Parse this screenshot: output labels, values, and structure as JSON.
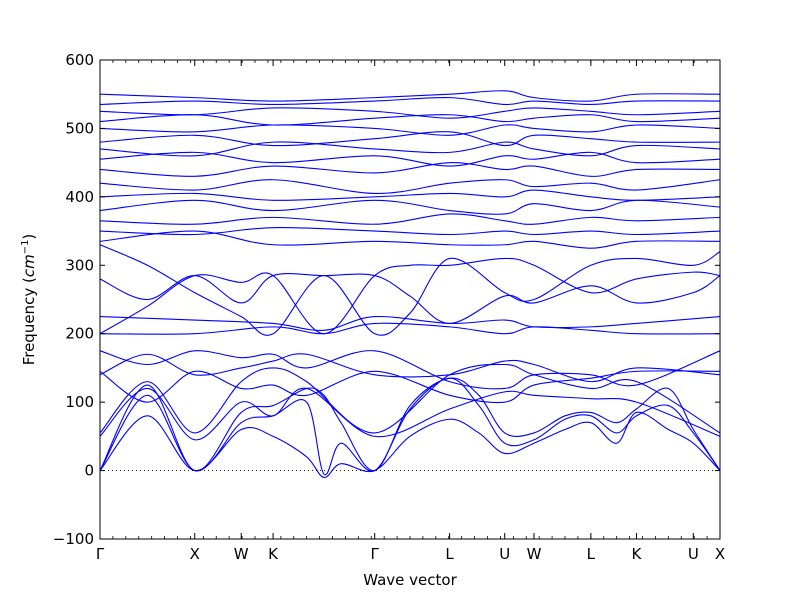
{
  "chart_data": {
    "type": "line",
    "xlabel": "Wave vector",
    "ylabel_prefix": "Frequency (",
    "ylabel_unit_base": "cm",
    "ylabel_unit_exp": "−1",
    "ylabel_suffix": ")",
    "ylim": [
      -100,
      600
    ],
    "yticks": [
      -100,
      0,
      100,
      200,
      300,
      400,
      500,
      600
    ],
    "ytick_labels": [
      "−100",
      "0",
      "100",
      "200",
      "300",
      "400",
      "500",
      "600"
    ],
    "xlim": [
      0,
      7.2
    ],
    "xticks": [
      {
        "label": "Γ",
        "x": 0.0
      },
      {
        "label": "X",
        "x": 1.1
      },
      {
        "label": "W",
        "x": 1.64
      },
      {
        "label": "K",
        "x": 2.01
      },
      {
        "label": "Γ",
        "x": 3.19
      },
      {
        "label": "L",
        "x": 4.06
      },
      {
        "label": "U",
        "x": 4.7
      },
      {
        "label": "W",
        "x": 5.04
      },
      {
        "label": "L",
        "x": 5.7
      },
      {
        "label": "K",
        "x": 6.23
      },
      {
        "label": "U",
        "x": 6.89
      },
      {
        "label": "X",
        "x": 7.2
      }
    ],
    "zero_line": 0,
    "grid": false,
    "color": "#0000ff",
    "series": [
      {
        "x": [
          0,
          0.55,
          1.1,
          1.64,
          2.01,
          2.4,
          2.6,
          2.8,
          3.19,
          3.6,
          4.06,
          4.4,
          4.7,
          5.04,
          5.4,
          5.7,
          6.0,
          6.23,
          6.6,
          6.89,
          7.2
        ],
        "y": [
          0,
          80,
          0,
          60,
          50,
          20,
          -10,
          10,
          0,
          50,
          75,
          55,
          25,
          40,
          60,
          70,
          40,
          85,
          60,
          40,
          0
        ]
      },
      {
        "x": [
          0,
          0.55,
          1.1,
          1.64,
          2.01,
          2.4,
          2.6,
          2.8,
          3.19,
          3.6,
          4.06,
          4.4,
          4.7,
          5.04,
          5.4,
          5.7,
          6.0,
          6.23,
          6.6,
          6.89,
          7.2
        ],
        "y": [
          0,
          110,
          0,
          70,
          80,
          100,
          -5,
          40,
          0,
          90,
          135,
          95,
          40,
          45,
          75,
          80,
          55,
          80,
          95,
          55,
          0
        ]
      },
      {
        "x": [
          0,
          0.55,
          1.1,
          1.64,
          2.01,
          2.4,
          2.6,
          2.8,
          3.19,
          3.6,
          4.06,
          4.4,
          4.7,
          5.04,
          5.4,
          5.7,
          6.0,
          6.23,
          6.6,
          6.89,
          7.2
        ],
        "y": [
          0,
          125,
          0,
          85,
          95,
          120,
          110,
          70,
          0,
          95,
          135,
          110,
          55,
          55,
          80,
          85,
          70,
          90,
          120,
          60,
          0
        ]
      },
      {
        "x": [
          0,
          0.55,
          1.1,
          1.64,
          2.01,
          2.4,
          3.19,
          4.06,
          4.7,
          5.04,
          5.7,
          6.23,
          7.2
        ],
        "y": [
          50,
          120,
          45,
          100,
          80,
          120,
          50,
          90,
          115,
          110,
          105,
          100,
          50
        ]
      },
      {
        "x": [
          0,
          0.55,
          1.1,
          1.64,
          2.01,
          2.4,
          3.19,
          4.06,
          4.7,
          5.04,
          5.7,
          6.23,
          7.2
        ],
        "y": [
          55,
          130,
          55,
          130,
          150,
          130,
          55,
          140,
          155,
          140,
          120,
          130,
          55
        ]
      },
      {
        "x": [
          0,
          0.55,
          1.1,
          1.64,
          2.01,
          2.4,
          3.19,
          4.06,
          4.7,
          5.04,
          5.7,
          6.23,
          7.2
        ],
        "y": [
          140,
          170,
          140,
          150,
          160,
          170,
          140,
          140,
          160,
          155,
          130,
          150,
          140
        ]
      },
      {
        "x": [
          0,
          0.55,
          1.1,
          1.64,
          2.01,
          2.4,
          3.19,
          4.06,
          4.7,
          5.04,
          5.7,
          6.23,
          7.2
        ],
        "y": [
          175,
          155,
          175,
          165,
          170,
          150,
          175,
          130,
          120,
          140,
          140,
          125,
          175
        ]
      },
      {
        "x": [
          0,
          0.55,
          1.1,
          1.64,
          2.01,
          2.4,
          3.19,
          4.06,
          4.7,
          5.04,
          5.7,
          6.23,
          7.2
        ],
        "y": [
          145,
          100,
          145,
          120,
          125,
          110,
          145,
          110,
          100,
          125,
          135,
          145,
          145
        ]
      },
      {
        "x": [
          0,
          1.1,
          2.01,
          2.6,
          3.19,
          4.06,
          4.7,
          5.04,
          5.7,
          6.23,
          7.2
        ],
        "y": [
          200,
          200,
          210,
          200,
          215,
          210,
          200,
          210,
          205,
          200,
          200
        ]
      },
      {
        "x": [
          0,
          1.1,
          2.01,
          2.6,
          3.19,
          4.06,
          4.7,
          5.04,
          5.7,
          6.23,
          7.2
        ],
        "y": [
          225,
          220,
          215,
          205,
          225,
          215,
          220,
          210,
          210,
          215,
          225
        ]
      },
      {
        "x": [
          0,
          0.55,
          1.1,
          1.64,
          2.01,
          2.6,
          3.19,
          3.6,
          4.06,
          4.7,
          5.04,
          5.7,
          6.23,
          6.89,
          7.2
        ],
        "y": [
          280,
          250,
          285,
          245,
          285,
          285,
          285,
          255,
          215,
          255,
          245,
          270,
          245,
          260,
          285
        ]
      },
      {
        "x": [
          0,
          0.55,
          1.1,
          1.64,
          2.01,
          2.6,
          3.19,
          3.6,
          4.06,
          4.7,
          5.04,
          5.7,
          6.23,
          6.89,
          7.2
        ],
        "y": [
          200,
          240,
          285,
          275,
          285,
          200,
          285,
          300,
          300,
          310,
          300,
          260,
          280,
          290,
          285
        ]
      },
      {
        "x": [
          0,
          0.55,
          1.1,
          1.64,
          2.01,
          2.6,
          3.19,
          3.6,
          4.06,
          4.7,
          5.04,
          5.7,
          6.23,
          6.89,
          7.2
        ],
        "y": [
          330,
          300,
          260,
          225,
          200,
          285,
          200,
          230,
          310,
          260,
          250,
          300,
          310,
          300,
          320
        ]
      },
      {
        "x": [
          0,
          1.1,
          2.01,
          3.19,
          4.06,
          4.7,
          5.04,
          5.7,
          6.23,
          7.2
        ],
        "y": [
          335,
          350,
          330,
          335,
          330,
          330,
          335,
          325,
          335,
          335
        ]
      },
      {
        "x": [
          0,
          1.1,
          2.01,
          3.19,
          4.06,
          4.7,
          5.04,
          5.7,
          6.23,
          7.2
        ],
        "y": [
          350,
          345,
          355,
          350,
          345,
          350,
          345,
          350,
          345,
          350
        ]
      },
      {
        "x": [
          0,
          1.1,
          2.01,
          3.19,
          4.06,
          4.7,
          5.04,
          5.7,
          6.23,
          7.2
        ],
        "y": [
          365,
          360,
          370,
          360,
          375,
          365,
          360,
          370,
          365,
          370
        ]
      },
      {
        "x": [
          0,
          1.1,
          2.01,
          3.19,
          4.06,
          4.7,
          5.04,
          5.7,
          6.23,
          7.2
        ],
        "y": [
          380,
          395,
          380,
          395,
          380,
          375,
          390,
          380,
          395,
          385
        ]
      },
      {
        "x": [
          0,
          1.1,
          2.01,
          3.19,
          4.06,
          4.7,
          5.04,
          5.7,
          6.23,
          7.2
        ],
        "y": [
          400,
          405,
          395,
          400,
          405,
          400,
          410,
          400,
          395,
          400
        ]
      },
      {
        "x": [
          0,
          1.1,
          2.01,
          3.19,
          4.06,
          4.7,
          5.04,
          5.7,
          6.23,
          7.2
        ],
        "y": [
          420,
          410,
          425,
          405,
          420,
          425,
          415,
          420,
          410,
          425
        ]
      },
      {
        "x": [
          0,
          1.1,
          2.01,
          3.19,
          4.06,
          4.7,
          5.04,
          5.7,
          6.23,
          7.2
        ],
        "y": [
          440,
          430,
          445,
          435,
          450,
          440,
          445,
          430,
          440,
          440
        ]
      },
      {
        "x": [
          0,
          1.1,
          2.01,
          3.19,
          4.06,
          4.7,
          5.04,
          5.7,
          6.23,
          7.2
        ],
        "y": [
          455,
          465,
          450,
          460,
          445,
          460,
          455,
          465,
          450,
          455
        ]
      },
      {
        "x": [
          0,
          1.1,
          2.01,
          3.19,
          4.06,
          4.7,
          5.04,
          5.7,
          6.23,
          7.2
        ],
        "y": [
          470,
          460,
          480,
          470,
          465,
          480,
          470,
          460,
          475,
          470
        ]
      },
      {
        "x": [
          0,
          1.1,
          2.01,
          3.19,
          4.06,
          4.7,
          5.04,
          5.7,
          6.23,
          7.2
        ],
        "y": [
          480,
          490,
          475,
          485,
          495,
          475,
          490,
          485,
          480,
          480
        ]
      },
      {
        "x": [
          0,
          1.1,
          2.01,
          3.19,
          4.06,
          4.7,
          5.04,
          5.7,
          6.23,
          7.2
        ],
        "y": [
          500,
          495,
          505,
          500,
          490,
          505,
          500,
          495,
          505,
          500
        ]
      },
      {
        "x": [
          0,
          1.1,
          2.01,
          3.19,
          4.06,
          4.7,
          5.04,
          5.7,
          6.23,
          7.2
        ],
        "y": [
          510,
          520,
          505,
          515,
          520,
          510,
          515,
          520,
          510,
          515
        ]
      },
      {
        "x": [
          0,
          1.1,
          2.01,
          3.19,
          4.06,
          4.7,
          5.04,
          5.7,
          6.23,
          7.2
        ],
        "y": [
          525,
          520,
          530,
          525,
          515,
          525,
          530,
          525,
          520,
          525
        ]
      },
      {
        "x": [
          0,
          1.1,
          2.01,
          3.19,
          4.06,
          4.7,
          5.04,
          5.7,
          6.23,
          7.2
        ],
        "y": [
          535,
          540,
          535,
          540,
          545,
          535,
          540,
          535,
          540,
          540
        ]
      },
      {
        "x": [
          0,
          1.1,
          2.01,
          3.19,
          4.06,
          4.7,
          5.04,
          5.7,
          6.23,
          7.2
        ],
        "y": [
          550,
          545,
          540,
          545,
          550,
          555,
          545,
          540,
          550,
          550
        ]
      }
    ]
  }
}
